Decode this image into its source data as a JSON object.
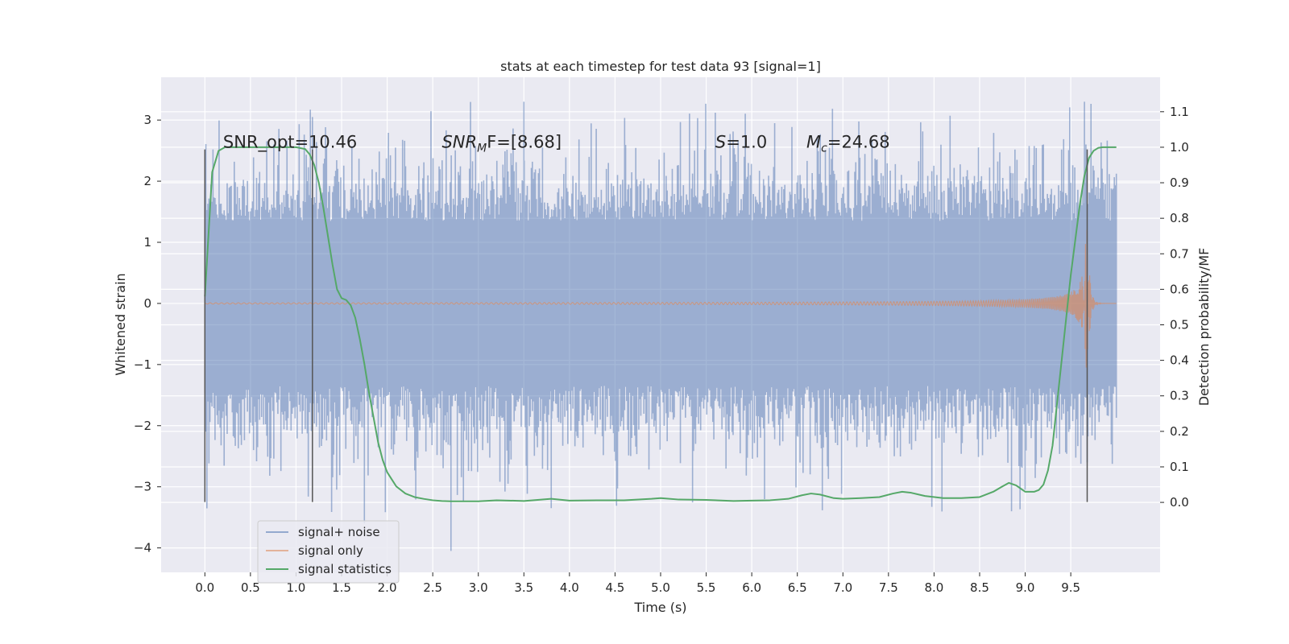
{
  "chart_data": {
    "type": "line",
    "title": "stats at each timestep for test data 93 [signal=1]",
    "xlabel": "Time (s)",
    "ylabel_left": "Whitened strain",
    "ylabel_right": "Detection probability/MF",
    "xlim": [
      -0.48,
      10.48
    ],
    "ylim_left": [
      -4.4,
      3.7
    ],
    "ylim_right": [
      -0.197,
      1.197
    ],
    "x_ticks": [
      "0.0",
      "0.5",
      "1.0",
      "1.5",
      "2.0",
      "2.5",
      "3.0",
      "3.5",
      "4.0",
      "4.5",
      "5.0",
      "5.5",
      "6.0",
      "6.5",
      "7.0",
      "7.5",
      "8.0",
      "8.5",
      "9.0",
      "9.5"
    ],
    "x_tick_values": [
      0.0,
      0.5,
      1.0,
      1.5,
      2.0,
      2.5,
      3.0,
      3.5,
      4.0,
      4.5,
      5.0,
      5.5,
      6.0,
      6.5,
      7.0,
      7.5,
      8.0,
      8.5,
      9.0,
      9.5
    ],
    "y_left_ticks": [
      "3",
      "2",
      "1",
      "0",
      "−1",
      "−2",
      "−3",
      "−4"
    ],
    "y_left_tick_values": [
      3,
      2,
      1,
      0,
      -1,
      -2,
      -3,
      -4
    ],
    "y_right_ticks": [
      "1.1",
      "1.0",
      "0.9",
      "0.8",
      "0.7",
      "0.6",
      "0.5",
      "0.4",
      "0.3",
      "0.2",
      "0.1",
      "0.0"
    ],
    "y_right_tick_values": [
      1.1,
      1.0,
      0.9,
      0.8,
      0.7,
      0.6,
      0.5,
      0.4,
      0.3,
      0.2,
      0.1,
      0.0
    ],
    "grid": true,
    "legend_position": "lower-left",
    "annotations": [
      {
        "id": "snr-opt",
        "text": "SNR_opt=10.46",
        "x": 0.2,
        "y": 2.55
      },
      {
        "id": "snr-mf",
        "main": "SNR",
        "sub": "M",
        "rest": "F=[8.68]",
        "x": 2.6,
        "y": 2.55
      },
      {
        "id": "s-val",
        "main": "S",
        "rest": "=1.0",
        "x": 5.6,
        "y": 2.55
      },
      {
        "id": "mc-val",
        "main": "M",
        "sub": "c",
        "rest": "=24.68",
        "x": 6.6,
        "y": 2.55
      }
    ],
    "vertical_lines": [
      {
        "x": 0.0,
        "ymin": -3.25,
        "ymax": 2.52
      },
      {
        "x": 1.18,
        "ymin": -3.25,
        "ymax": 2.52
      },
      {
        "x": 9.68,
        "ymin": -3.25,
        "ymax": 2.52
      }
    ],
    "series": [
      {
        "name": "signal+ noise",
        "color": "#4c72b0",
        "style": "noise-band",
        "x_range": [
          0.0,
          10.0
        ],
        "core_amplitude": 1.35,
        "typical_extreme": 2.2,
        "max": 3.3,
        "min": -4.05
      },
      {
        "name": "signal only",
        "color": "#dd8452",
        "style": "chirp",
        "x_range": [
          0.0,
          10.0
        ],
        "merger_time": 9.68,
        "peak_amplitude": 1.45
      },
      {
        "name": "signal statistics",
        "color": "#55a868",
        "style": "line",
        "axis": "right",
        "x": [
          0.0,
          0.08,
          0.15,
          0.22,
          0.3,
          0.5,
          0.7,
          0.9,
          1.0,
          1.1,
          1.15,
          1.2,
          1.25,
          1.3,
          1.35,
          1.4,
          1.45,
          1.5,
          1.55,
          1.6,
          1.65,
          1.7,
          1.75,
          1.8,
          1.85,
          1.9,
          1.95,
          2.0,
          2.05,
          2.1,
          2.2,
          2.3,
          2.4,
          2.5,
          2.6,
          2.7,
          2.8,
          3.0,
          3.2,
          3.5,
          3.8,
          4.0,
          4.3,
          4.6,
          4.9,
          5.0,
          5.2,
          5.5,
          5.8,
          6.0,
          6.2,
          6.4,
          6.55,
          6.65,
          6.75,
          6.9,
          7.0,
          7.2,
          7.4,
          7.55,
          7.65,
          7.75,
          7.9,
          8.1,
          8.3,
          8.5,
          8.65,
          8.75,
          8.82,
          8.9,
          9.0,
          9.1,
          9.15,
          9.2,
          9.25,
          9.3,
          9.35,
          9.4,
          9.45,
          9.5,
          9.55,
          9.6,
          9.65,
          9.7,
          9.75,
          9.8,
          9.85,
          9.9,
          9.95,
          10.0
        ],
        "y": [
          0.58,
          0.93,
          0.99,
          1.0,
          1.0,
          1.0,
          1.0,
          1.0,
          1.0,
          0.995,
          0.98,
          0.95,
          0.9,
          0.83,
          0.75,
          0.67,
          0.6,
          0.575,
          0.57,
          0.555,
          0.52,
          0.46,
          0.39,
          0.31,
          0.24,
          0.17,
          0.12,
          0.085,
          0.065,
          0.045,
          0.025,
          0.015,
          0.01,
          0.006,
          0.004,
          0.003,
          0.003,
          0.003,
          0.006,
          0.004,
          0.01,
          0.005,
          0.006,
          0.006,
          0.01,
          0.012,
          0.008,
          0.007,
          0.004,
          0.005,
          0.006,
          0.01,
          0.02,
          0.025,
          0.022,
          0.012,
          0.01,
          0.012,
          0.015,
          0.025,
          0.03,
          0.027,
          0.018,
          0.012,
          0.012,
          0.015,
          0.03,
          0.045,
          0.055,
          0.048,
          0.03,
          0.03,
          0.035,
          0.05,
          0.09,
          0.16,
          0.28,
          0.4,
          0.52,
          0.64,
          0.74,
          0.84,
          0.92,
          0.97,
          0.99,
          0.998,
          1.0,
          1.0,
          1.0,
          1.0
        ]
      }
    ]
  }
}
